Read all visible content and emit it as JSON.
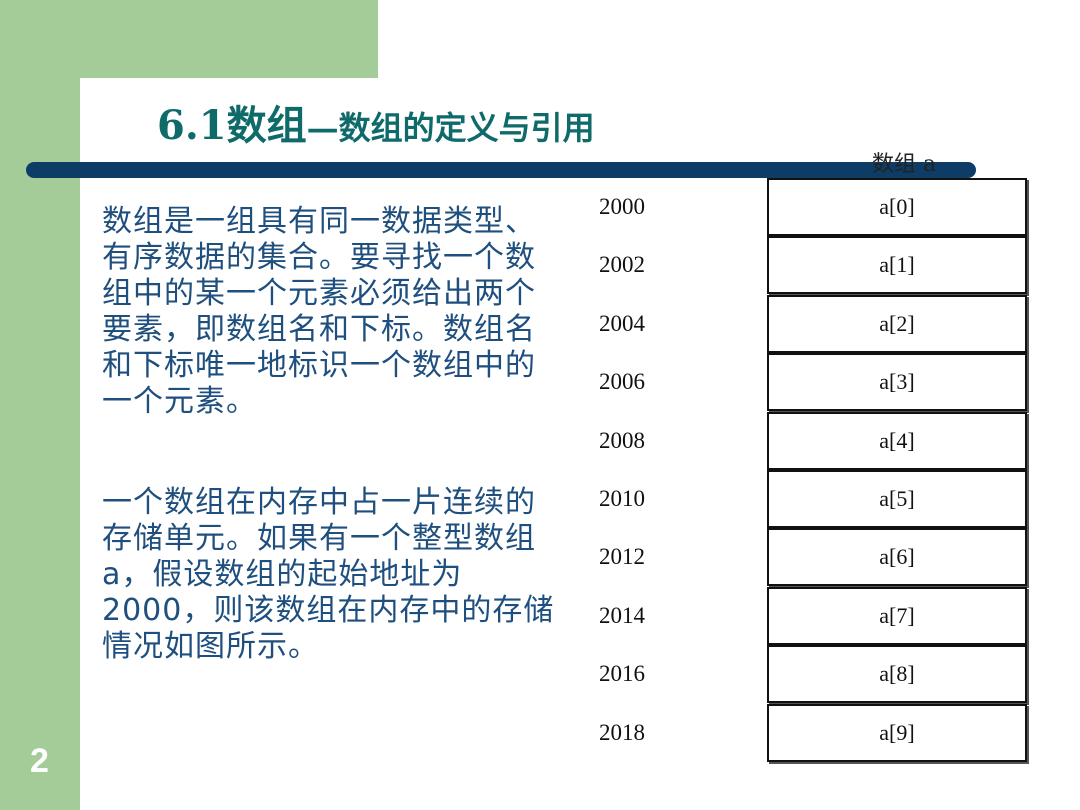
{
  "slide": {
    "number": "2",
    "title_main": "6.1数组",
    "title_sub": "—数组的定义与引用"
  },
  "body": {
    "paragraph1": "数组是一组具有同一数据类型、有序数据的集合。要寻找一个数组中的某一个元素必须给出两个要素，即数组名和下标。数组名和下标唯一地标识一个数组中的一个元素。",
    "paragraph2": "一个数组在内存中占一片连续的存储单元。如果有一个整型数组a，假设数组的起始地址为2000，则该数组在内存中的存储情况如图所示。"
  },
  "diagram": {
    "array_label": "数组 a",
    "rows": [
      {
        "address": "2000",
        "element": "a[0]"
      },
      {
        "address": "2002",
        "element": "a[1]"
      },
      {
        "address": "2004",
        "element": "a[2]"
      },
      {
        "address": "2006",
        "element": "a[3]"
      },
      {
        "address": "2008",
        "element": "a[4]"
      },
      {
        "address": "2010",
        "element": "a[5]"
      },
      {
        "address": "2012",
        "element": "a[6]"
      },
      {
        "address": "2014",
        "element": "a[7]"
      },
      {
        "address": "2016",
        "element": "a[8]"
      },
      {
        "address": "2018",
        "element": "a[9]"
      }
    ]
  },
  "colors": {
    "background_green": "#a3cc99",
    "title_color": "#0f6a6a",
    "rule_color": "#0d3d67",
    "body_text_color": "#1e4f7e"
  }
}
